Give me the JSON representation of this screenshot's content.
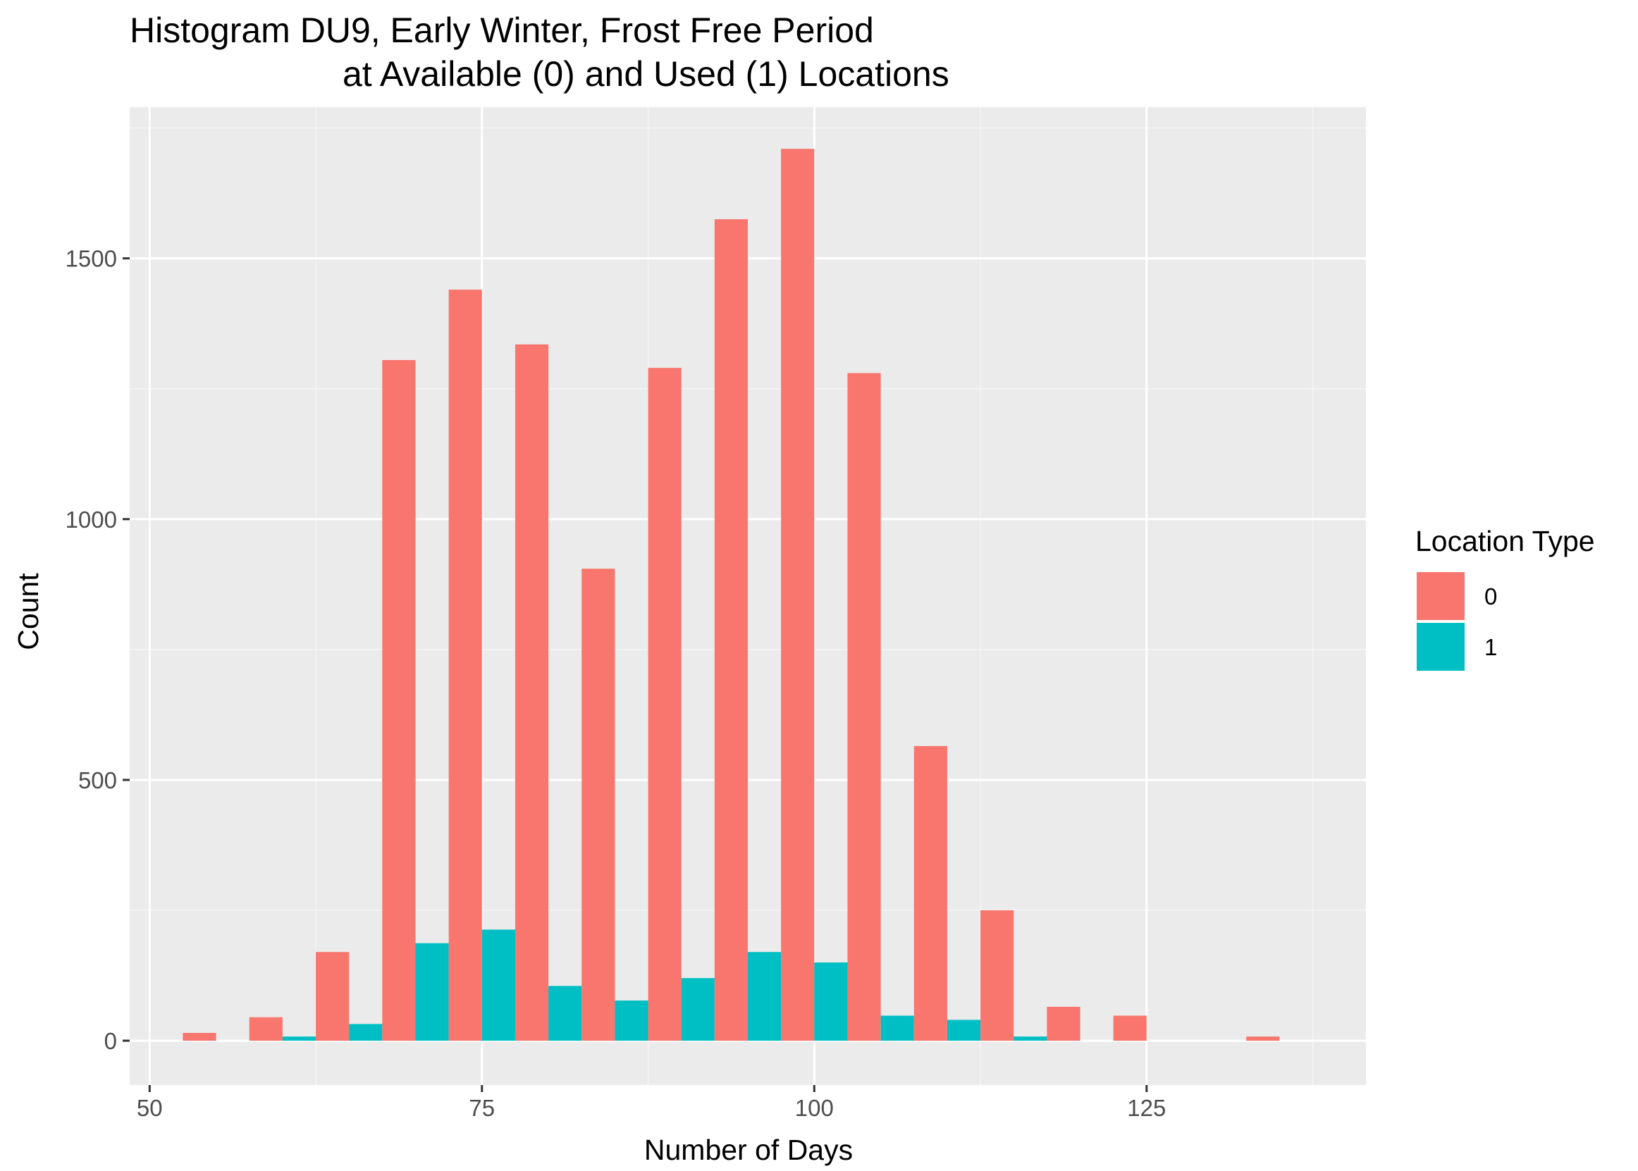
{
  "chart_data": {
    "type": "bar",
    "title": "Histogram DU9, Early Winter, Frost Free Period",
    "subtitle": "at Available (0) and Used (1) Locations",
    "xlabel": "Number of Days",
    "ylabel": "Count",
    "xlim": [
      48.5,
      141.5
    ],
    "ylim": [
      -85,
      1790
    ],
    "x_ticks": [
      50,
      75,
      100,
      125
    ],
    "y_ticks": [
      0,
      500,
      1000,
      1500
    ],
    "grid": true,
    "bin_width": 5,
    "legend": {
      "title": "Location Type",
      "position": "right"
    },
    "bins": [
      55,
      60,
      65,
      70,
      75,
      80,
      85,
      90,
      95,
      100,
      105,
      110,
      115,
      120,
      125,
      130,
      135
    ],
    "series": [
      {
        "name": "0",
        "color": "#F8766D",
        "values": [
          15,
          45,
          170,
          1305,
          1440,
          1335,
          905,
          1290,
          1575,
          1710,
          1280,
          565,
          250,
          65,
          48,
          0,
          8
        ]
      },
      {
        "name": "1",
        "color": "#00BFC4",
        "values": [
          0,
          8,
          32,
          187,
          213,
          105,
          77,
          120,
          170,
          150,
          48,
          40,
          8,
          0,
          0,
          0,
          0
        ]
      }
    ],
    "colors": {
      "panel_background": "#EBEBEB",
      "grid_major": "#FFFFFF",
      "grid_minor": "#F5F5F5"
    }
  }
}
